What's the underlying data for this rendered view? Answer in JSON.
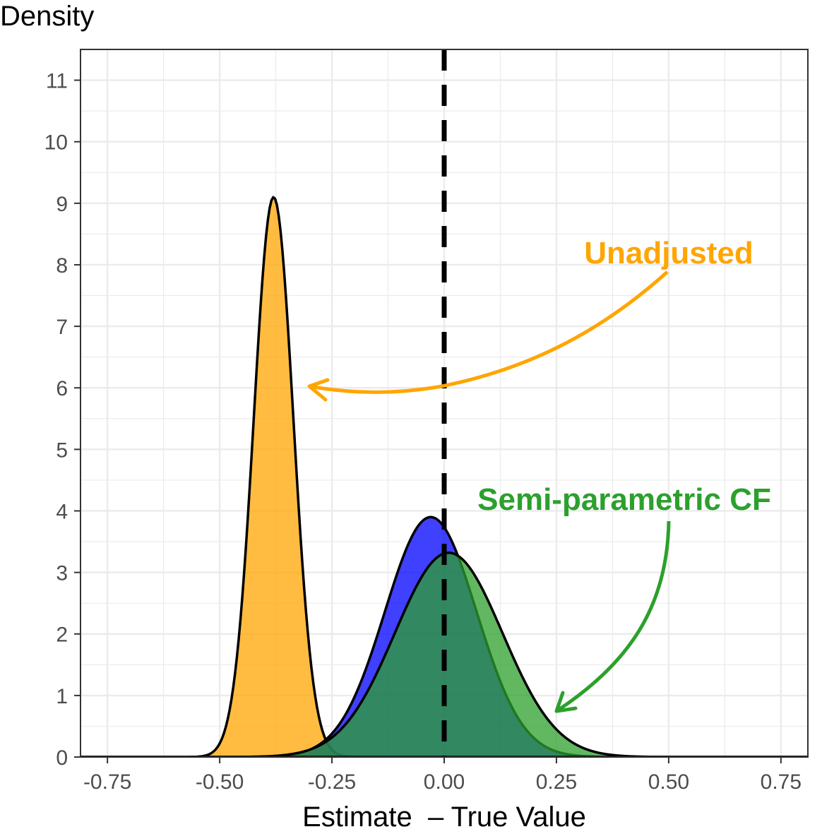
{
  "chart_data": {
    "type": "area",
    "title": "",
    "xlabel": "Estimate  – True Value",
    "ylabel": "Density",
    "xlim": [
      -0.81,
      0.81
    ],
    "ylim": [
      0,
      11.5
    ],
    "x_ticks": [
      "-0.75",
      "-0.50",
      "-0.25",
      "0.00",
      "0.25",
      "0.50",
      "0.75"
    ],
    "x_tick_values": [
      -0.75,
      -0.5,
      -0.25,
      0.0,
      0.25,
      0.5,
      0.75
    ],
    "y_ticks": [
      "0",
      "1",
      "2",
      "3",
      "4",
      "5",
      "6",
      "7",
      "8",
      "9",
      "10",
      "11"
    ],
    "y_tick_values": [
      0,
      1,
      2,
      3,
      4,
      5,
      6,
      7,
      8,
      9,
      10,
      11
    ],
    "grid": true,
    "reference_line": {
      "x": 0.0,
      "style": "dashed",
      "color": "#000000"
    },
    "series": [
      {
        "name": "Unadjusted",
        "shape": "normal",
        "mean": -0.38,
        "peak_density": 9.1,
        "sd": 0.044,
        "fill": "#FFA500",
        "fill_opacity": 0.75
      },
      {
        "shape": "normal",
        "mean": -0.03,
        "peak_density": 3.9,
        "sd": 0.102,
        "fill": "#0000FF",
        "fill_opacity": 0.75
      },
      {
        "name": "Semi-parametric CF",
        "shape": "normal",
        "mean": 0.01,
        "peak_density": 3.32,
        "sd": 0.12,
        "fill": "#2CA02C",
        "fill_opacity": 0.75
      }
    ],
    "annotations": [
      {
        "text": "Unadjusted",
        "color": "#FFA500",
        "arrow_to": [
          -0.3,
          6.0
        ]
      },
      {
        "text": "Semi-parametric CF",
        "color": "#2CA02C",
        "arrow_to": [
          0.25,
          0.7
        ]
      }
    ]
  }
}
